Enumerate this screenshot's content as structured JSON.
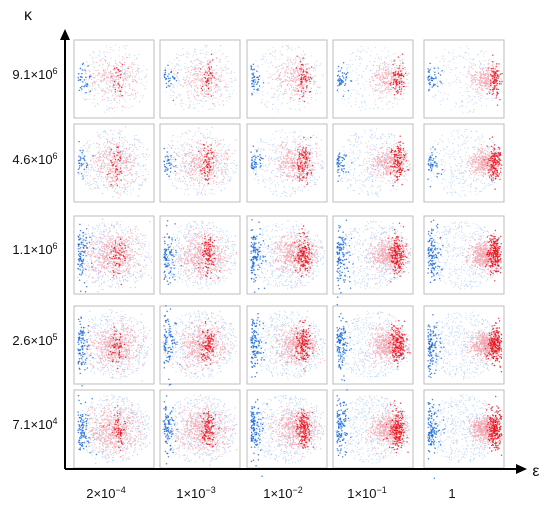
{
  "chart_data": {
    "type": "scatter",
    "kind": "grid of particle-distribution panels",
    "x_axis_label": "ε",
    "y_axis_label": "κ",
    "columns": [
      {
        "base": "2",
        "exp": "−4",
        "display": "2×10−4"
      },
      {
        "base": "1",
        "exp": "−3",
        "display": "1×10−3"
      },
      {
        "base": "1",
        "exp": "−2",
        "display": "1×10−2"
      },
      {
        "base": "1",
        "exp": "−1",
        "display": "1×10−1"
      },
      {
        "base": "1",
        "exp": "",
        "display": "1"
      }
    ],
    "rows": [
      {
        "base": "9.1",
        "exp": "6",
        "display": "9.1×106"
      },
      {
        "base": "4.6",
        "exp": "6",
        "display": "4.6×106"
      },
      {
        "base": "1.1",
        "exp": "6",
        "display": "1.1×106"
      },
      {
        "base": "2.6",
        "exp": "5",
        "display": "2.6×105"
      },
      {
        "base": "7.1",
        "exp": "4",
        "display": "7.1×104"
      }
    ],
    "colors": {
      "red": "#e8141e",
      "blue": "#1565d8",
      "pink": "#f3a3ad",
      "light_blue": "#a9c8f2",
      "frame": "#bdbdbd"
    }
  }
}
